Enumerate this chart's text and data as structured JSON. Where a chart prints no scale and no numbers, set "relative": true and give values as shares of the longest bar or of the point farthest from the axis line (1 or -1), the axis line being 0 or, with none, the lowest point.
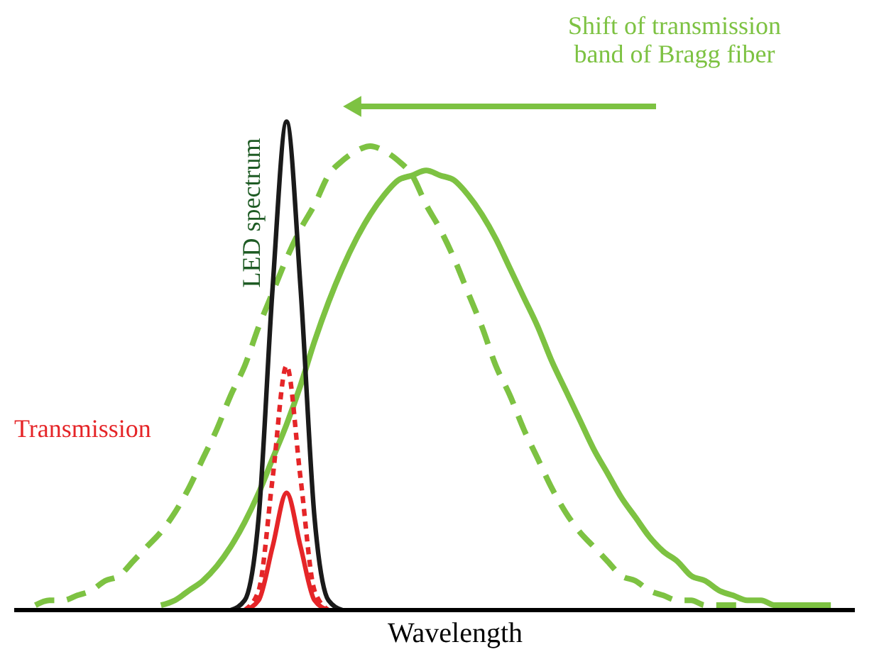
{
  "chart_data": {
    "type": "line",
    "relative": true,
    "xlabel": "Wavelength",
    "categories": [
      null,
      null,
      null,
      null,
      null,
      null,
      null,
      null,
      null,
      null,
      null,
      null,
      null,
      null,
      null,
      null,
      null,
      null,
      null,
      null,
      null,
      null,
      null,
      null,
      null,
      null,
      null,
      null,
      null,
      null,
      null,
      null,
      null,
      null,
      null,
      null,
      null,
      null,
      null,
      null,
      null,
      null,
      null,
      null,
      null,
      null,
      null,
      null,
      null,
      null,
      null,
      null,
      null,
      null,
      null,
      null,
      null,
      null
    ],
    "series": [
      {
        "color": "#7dc242",
        "line_style": "dashed",
        "values": [
          0.01,
          0.02,
          0.02,
          0.03,
          0.04,
          0.06,
          0.07,
          0.1,
          0.13,
          0.16,
          0.2,
          0.25,
          0.31,
          0.37,
          0.44,
          0.5,
          0.58,
          0.65,
          0.72,
          0.78,
          0.83,
          0.89,
          0.92,
          0.94,
          0.95,
          0.94,
          0.92,
          0.89,
          0.83,
          0.78,
          0.72,
          0.65,
          0.58,
          0.5,
          0.44,
          0.37,
          0.31,
          0.25,
          0.2,
          0.16,
          0.13,
          0.1,
          0.07,
          0.06,
          0.04,
          0.03,
          0.02,
          0.02,
          0.01,
          0.01,
          0.01,
          0.01,
          null,
          null,
          null,
          null,
          null,
          null
        ]
      },
      {
        "color": "#7dc242",
        "line_style": "solid",
        "values": [
          null,
          null,
          null,
          null,
          null,
          null,
          null,
          null,
          null,
          0.01,
          0.02,
          0.04,
          0.06,
          0.09,
          0.13,
          0.18,
          0.24,
          0.31,
          0.38,
          0.46,
          0.55,
          0.63,
          0.7,
          0.76,
          0.81,
          0.85,
          0.88,
          0.89,
          0.9,
          0.89,
          0.88,
          0.85,
          0.81,
          0.76,
          0.7,
          0.64,
          0.58,
          0.51,
          0.45,
          0.39,
          0.33,
          0.28,
          0.23,
          0.19,
          0.15,
          0.12,
          0.1,
          0.07,
          0.06,
          0.04,
          0.03,
          0.02,
          0.02,
          0.01,
          0.01,
          0.01,
          0.01,
          0.01
        ]
      },
      {
        "color": "#1a1a1a",
        "line_style": "solid",
        "values": [
          null,
          null,
          null,
          null,
          null,
          null,
          null,
          null,
          null,
          null,
          null,
          null,
          null,
          null,
          0,
          0.02,
          0.19,
          0.66,
          1,
          0.66,
          0.19,
          0.02,
          0,
          null,
          null,
          null,
          null,
          null,
          null,
          null,
          null,
          null,
          null,
          null,
          null,
          null,
          null,
          null,
          null,
          null,
          null,
          null,
          null,
          null,
          null,
          null,
          null,
          null,
          null,
          null,
          null,
          null,
          null,
          null,
          null,
          null,
          null,
          null
        ]
      },
      {
        "color": "#e52528",
        "line_style": "dotted",
        "values": [
          null,
          null,
          null,
          null,
          null,
          null,
          null,
          null,
          null,
          null,
          null,
          null,
          null,
          null,
          null,
          0,
          0.04,
          0.27,
          0.5,
          0.27,
          0.04,
          0,
          null,
          null,
          null,
          null,
          null,
          null,
          null,
          null,
          null,
          null,
          null,
          null,
          null,
          null,
          null,
          null,
          null,
          null,
          null,
          null,
          null,
          null,
          null,
          null,
          null,
          null,
          null,
          null,
          null,
          null,
          null,
          null,
          null,
          null,
          null,
          null
        ]
      },
      {
        "color": "#e52528",
        "line_style": "solid",
        "values": [
          null,
          null,
          null,
          null,
          null,
          null,
          null,
          null,
          null,
          null,
          null,
          null,
          null,
          null,
          null,
          0,
          0.02,
          0.13,
          0.24,
          0.13,
          0.02,
          0,
          null,
          null,
          null,
          null,
          null,
          null,
          null,
          null,
          null,
          null,
          null,
          null,
          null,
          null,
          null,
          null,
          null,
          null,
          null,
          null,
          null,
          null,
          null,
          null,
          null,
          null,
          null,
          null,
          null,
          null,
          null,
          null,
          null,
          null,
          null,
          null
        ]
      }
    ],
    "annotations": [
      "Shift of transmission\nband of Bragg fiber",
      "LED spectrum",
      "Transmission"
    ]
  }
}
